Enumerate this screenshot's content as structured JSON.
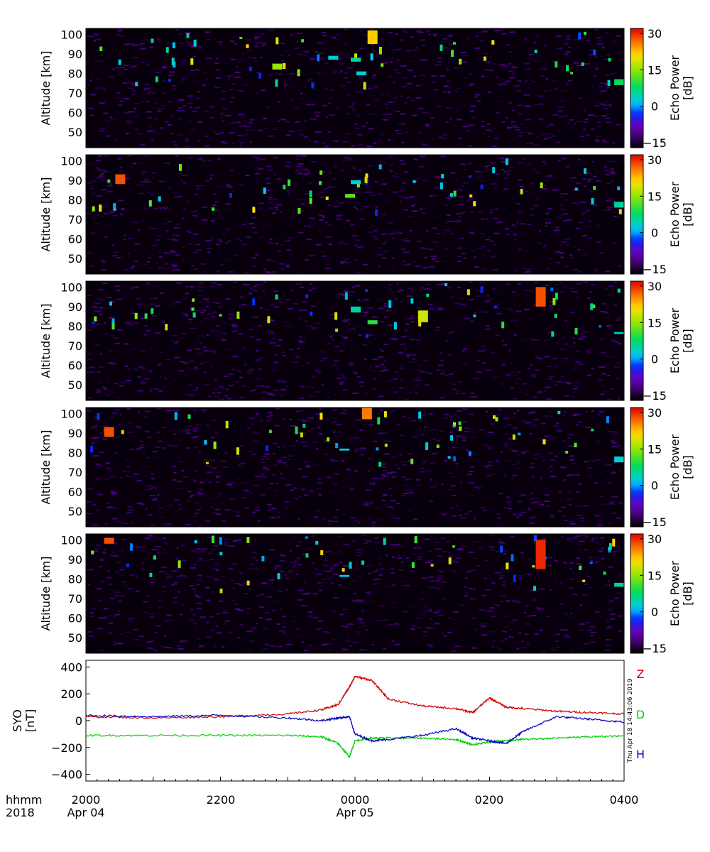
{
  "figure": {
    "footer_time_unit": "hhmm",
    "footer_year": "2018",
    "x_tick_labels": [
      "2000",
      "2200",
      "0000",
      "0200",
      "0400"
    ],
    "x_date_labels": [
      "Apr 04",
      "Apr 05"
    ],
    "timestamp": "Thu Apr 18 14:43:06 2019"
  },
  "chart_data": [
    {
      "type": "heatmap",
      "panel": 1,
      "ylabel": "Altitude [km]",
      "yticks": [
        50,
        60,
        70,
        80,
        90,
        100
      ],
      "ylim": [
        42,
        103
      ],
      "xlim": [
        "2018-04-04 20:00",
        "2018-04-05 04:00"
      ],
      "colorbar": {
        "label": "Echo Power [dB]",
        "ticks": [
          30,
          15,
          0,
          -15
        ],
        "range": [
          -17,
          32
        ]
      },
      "features": [
        {
          "time": "2018-04-04 22:50",
          "alt_min": 82,
          "alt_max": 85,
          "dB": 15
        },
        {
          "time": "2018-04-04 23:40",
          "alt_min": 87,
          "alt_max": 89,
          "dB": 3
        },
        {
          "time": "2018-04-05 00:00",
          "alt_min": 86,
          "alt_max": 88,
          "dB": 5
        },
        {
          "time": "2018-04-05 00:05",
          "alt_min": 79,
          "alt_max": 81,
          "dB": 3
        },
        {
          "time": "2018-04-05 00:15",
          "alt_min": 95,
          "alt_max": 102,
          "dB": 22
        },
        {
          "time": "2018-04-05 03:55",
          "alt_min": 74,
          "alt_max": 77,
          "dB": 8
        }
      ]
    },
    {
      "type": "heatmap",
      "panel": 2,
      "ylabel": "Altitude [km]",
      "yticks": [
        50,
        60,
        70,
        80,
        90,
        100
      ],
      "ylim": [
        42,
        103
      ],
      "xlim": [
        "2018-04-04 20:00",
        "2018-04-05 04:00"
      ],
      "colorbar": {
        "label": "Echo Power [dB]",
        "ticks": [
          30,
          15,
          0,
          -15
        ],
        "range": [
          -17,
          32
        ]
      },
      "features": [
        {
          "time": "2018-04-04 23:55",
          "alt_min": 81,
          "alt_max": 83,
          "dB": 12
        },
        {
          "time": "2018-04-05 00:00",
          "alt_min": 88,
          "alt_max": 90,
          "dB": 3
        },
        {
          "time": "2018-04-04 20:30",
          "alt_min": 88,
          "alt_max": 93,
          "dB": 28
        },
        {
          "time": "2018-04-05 03:55",
          "alt_min": 76,
          "alt_max": 79,
          "dB": 5
        }
      ]
    },
    {
      "type": "heatmap",
      "panel": 3,
      "ylabel": "Altitude [km]",
      "yticks": [
        50,
        60,
        70,
        80,
        90,
        100
      ],
      "ylim": [
        42,
        103
      ],
      "xlim": [
        "2018-04-04 20:00",
        "2018-04-05 04:00"
      ],
      "colorbar": {
        "label": "Echo Power [dB]",
        "ticks": [
          30,
          15,
          0,
          -15
        ],
        "range": [
          -17,
          32
        ]
      },
      "features": [
        {
          "time": "2018-04-05 00:00",
          "alt_min": 87,
          "alt_max": 90,
          "dB": 5
        },
        {
          "time": "2018-04-05 00:15",
          "alt_min": 81,
          "alt_max": 83,
          "dB": 10
        },
        {
          "time": "2018-04-05 01:00",
          "alt_min": 82,
          "alt_max": 88,
          "dB": 18
        },
        {
          "time": "2018-04-05 02:45",
          "alt_min": 90,
          "alt_max": 100,
          "dB": 28
        },
        {
          "time": "2018-04-05 03:55",
          "alt_min": 76,
          "alt_max": 77,
          "dB": 3
        }
      ]
    },
    {
      "type": "heatmap",
      "panel": 4,
      "ylabel": "Altitude [km]",
      "yticks": [
        50,
        60,
        70,
        80,
        90,
        100
      ],
      "ylim": [
        42,
        103
      ],
      "xlim": [
        "2018-04-04 20:00",
        "2018-04-05 04:00"
      ],
      "colorbar": {
        "label": "Echo Power [dB]",
        "ticks": [
          30,
          15,
          0,
          -15
        ],
        "range": [
          -17,
          32
        ]
      },
      "features": [
        {
          "time": "2018-04-04 20:20",
          "alt_min": 88,
          "alt_max": 93,
          "dB": 28
        },
        {
          "time": "2018-04-04 23:50",
          "alt_min": 81,
          "alt_max": 82,
          "dB": 2
        },
        {
          "time": "2018-04-05 00:10",
          "alt_min": 97,
          "alt_max": 103,
          "dB": 26
        },
        {
          "time": "2018-04-05 03:55",
          "alt_min": 75,
          "alt_max": 78,
          "dB": 3
        }
      ]
    },
    {
      "type": "heatmap",
      "panel": 5,
      "ylabel": "Altitude [km]",
      "yticks": [
        50,
        60,
        70,
        80,
        90,
        100
      ],
      "ylim": [
        42,
        103
      ],
      "xlim": [
        "2018-04-04 20:00",
        "2018-04-05 04:00"
      ],
      "colorbar": {
        "label": "Echo Power [dB]",
        "ticks": [
          30,
          15,
          0,
          -15
        ],
        "range": [
          -17,
          32
        ]
      },
      "features": [
        {
          "time": "2018-04-04 23:50",
          "alt_min": 81,
          "alt_max": 82,
          "dB": 2
        },
        {
          "time": "2018-04-05 02:45",
          "alt_min": 85,
          "alt_max": 100,
          "dB": 30
        },
        {
          "time": "2018-04-05 03:55",
          "alt_min": 76,
          "alt_max": 78,
          "dB": 5
        },
        {
          "time": "2018-04-04 20:20",
          "alt_min": 98,
          "alt_max": 101,
          "dB": 28
        }
      ]
    },
    {
      "type": "line",
      "panel": 6,
      "ylabel": "SYO [nT]",
      "ylim": [
        -450,
        450
      ],
      "yticks": [
        400,
        200,
        0,
        -200,
        -400
      ],
      "xlim": [
        "2018-04-04 20:00",
        "2018-04-05 04:00"
      ],
      "x": [
        "2018-04-04 20:00",
        "2018-04-04 21:00",
        "2018-04-04 22:00",
        "2018-04-04 23:00",
        "2018-04-04 23:30",
        "2018-04-04 23:45",
        "2018-04-04 23:55",
        "2018-04-05 00:00",
        "2018-04-05 00:15",
        "2018-04-05 00:30",
        "2018-04-05 01:00",
        "2018-04-05 01:30",
        "2018-04-05 01:45",
        "2018-04-05 02:00",
        "2018-04-05 02:15",
        "2018-04-05 02:30",
        "2018-04-05 03:00",
        "2018-04-05 03:30",
        "2018-04-05 04:00"
      ],
      "series": [
        {
          "name": "Z",
          "color": "#d00000",
          "values": [
            30,
            20,
            30,
            50,
            80,
            120,
            250,
            330,
            300,
            160,
            110,
            90,
            60,
            170,
            100,
            90,
            70,
            60,
            50
          ]
        },
        {
          "name": "D",
          "color": "#00cc00",
          "values": [
            -110,
            -110,
            -110,
            -110,
            -120,
            -170,
            -270,
            -150,
            -130,
            -130,
            -130,
            -140,
            -180,
            -160,
            -150,
            -140,
            -130,
            -120,
            -115
          ]
        },
        {
          "name": "H",
          "color": "#0000c0",
          "values": [
            40,
            30,
            40,
            20,
            0,
            20,
            30,
            -100,
            -150,
            -140,
            -110,
            -60,
            -130,
            -150,
            -170,
            -80,
            30,
            10,
            -10
          ]
        }
      ]
    }
  ]
}
